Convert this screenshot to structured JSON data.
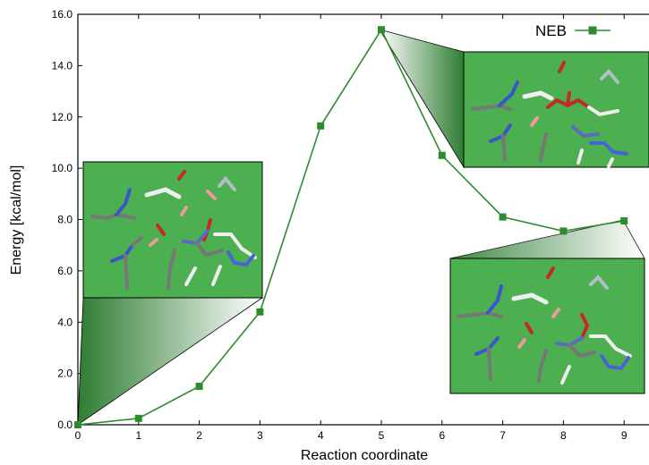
{
  "chart_data": {
    "type": "line",
    "xlabel": "Reaction coordinate",
    "ylabel": "Energy [kcal/mol]",
    "xlim": [
      0,
      9
    ],
    "ylim": [
      0.0,
      16.0
    ],
    "x_ticks": [
      "0",
      "1",
      "2",
      "3",
      "4",
      "5",
      "6",
      "7",
      "8",
      "9"
    ],
    "y_ticks": [
      "0.0",
      "2.0",
      "4.0",
      "6.0",
      "8.0",
      "10.0",
      "12.0",
      "14.0",
      "16.0"
    ],
    "grid": false,
    "legend_position": "top-right",
    "series": [
      {
        "name": "NEB",
        "color": "#2e8b2e",
        "marker": "square",
        "x": [
          0,
          1,
          2,
          3,
          4,
          5,
          6,
          7,
          8,
          9
        ],
        "y": [
          0.0,
          0.25,
          1.5,
          4.4,
          11.65,
          15.4,
          10.5,
          8.1,
          7.55,
          7.95
        ]
      }
    ],
    "insets": [
      {
        "attached_to_x": 0,
        "depicts": "molecular structure"
      },
      {
        "attached_to_x": 5,
        "depicts": "molecular structure"
      },
      {
        "attached_to_x": 9,
        "depicts": "molecular structure"
      }
    ],
    "inset_background_color": "#4caf50"
  }
}
